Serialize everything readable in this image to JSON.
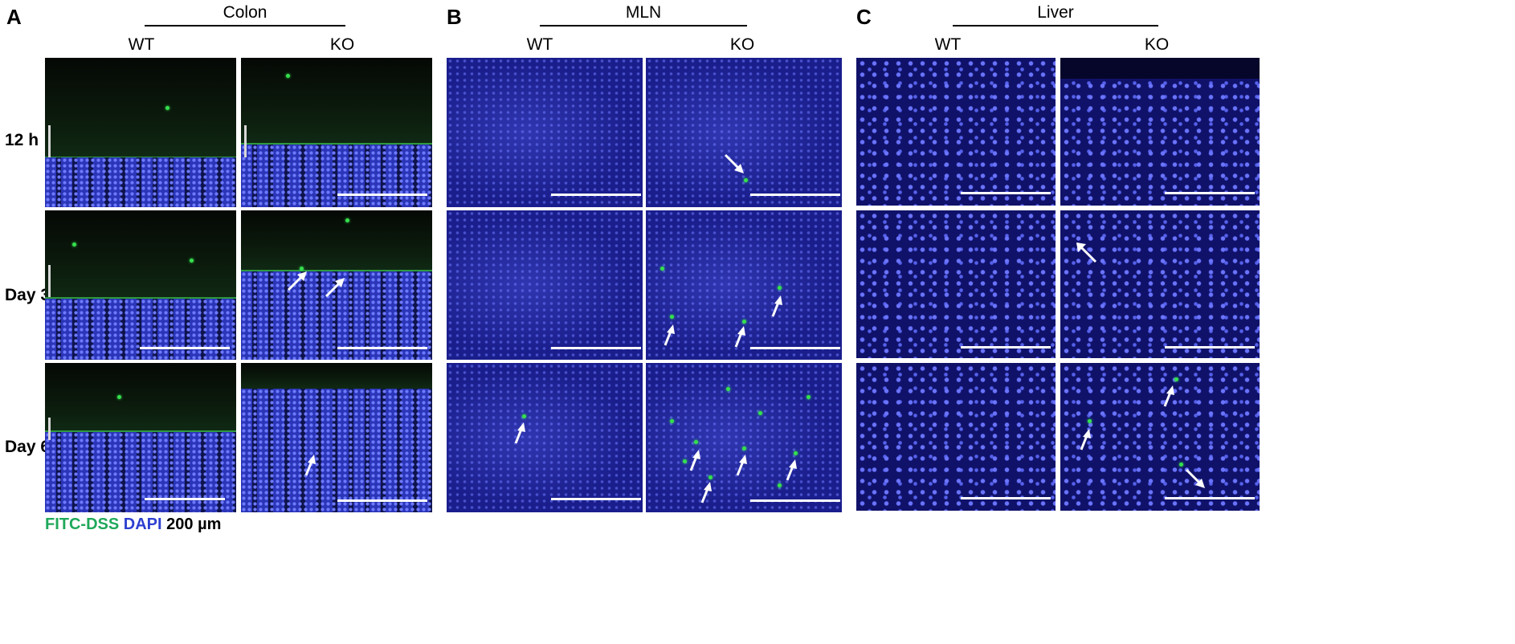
{
  "panels": [
    {
      "letter": "A",
      "title": "Colon",
      "columns": [
        "WT",
        "KO"
      ]
    },
    {
      "letter": "B",
      "title": "MLN",
      "columns": [
        "WT",
        "KO"
      ]
    },
    {
      "letter": "C",
      "title": "Liver",
      "columns": [
        "WT",
        "KO"
      ]
    }
  ],
  "rows": [
    "12 h",
    "Day 3",
    "Day 6"
  ],
  "legend": {
    "fitc": "FITC-DSS",
    "dapi": "DAPI",
    "scale": "200 µm"
  },
  "colors": {
    "fitc_green": "#35e04d",
    "dapi_blue": "#2c3fd0"
  }
}
